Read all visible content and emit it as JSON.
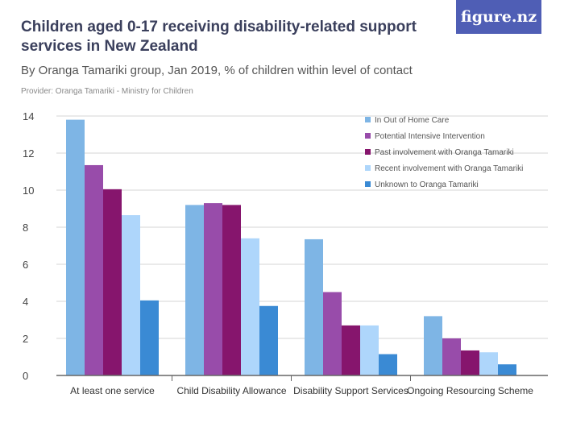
{
  "header": {
    "title": "Children aged 0-17 receiving disability-related support services in New Zealand",
    "subtitle": "By Oranga Tamariki group, Jan 2019, % of children within level of contact",
    "provider": "Provider: Oranga Tamariki - Ministry for Children",
    "logo": "figure.nz"
  },
  "chart_data": {
    "type": "bar",
    "title": "Children aged 0-17 receiving disability-related support services in New Zealand",
    "subtitle": "By Oranga Tamariki group, Jan 2019, % of children within level of contact",
    "categories": [
      "At least one service",
      "Child Disability Allowance",
      "Disability Support Services",
      "Ongoing Resourcing Scheme"
    ],
    "series": [
      {
        "name": "In Out of Home Care",
        "color": "#7eb5e5",
        "values": [
          13.8,
          9.2,
          7.35,
          3.2
        ]
      },
      {
        "name": "Potential Intensive Intervention",
        "color": "#984caa",
        "values": [
          11.35,
          9.3,
          4.5,
          2.0
        ]
      },
      {
        "name": "Past involvement with Oranga Tamariki",
        "color": "#86156d",
        "values": [
          10.05,
          9.2,
          2.7,
          1.35
        ]
      },
      {
        "name": "Recent involvement with Oranga Tamariki",
        "color": "#aed6fb",
        "values": [
          8.65,
          7.4,
          2.7,
          1.25
        ]
      },
      {
        "name": "Unknown to Oranga Tamariki",
        "color": "#3a8ad4",
        "values": [
          4.05,
          3.75,
          1.15,
          0.6
        ]
      }
    ],
    "yticks": [
      0,
      2,
      4,
      6,
      8,
      10,
      12,
      14
    ],
    "ylim": [
      0,
      14
    ],
    "grid": true,
    "legend": "top-right"
  }
}
